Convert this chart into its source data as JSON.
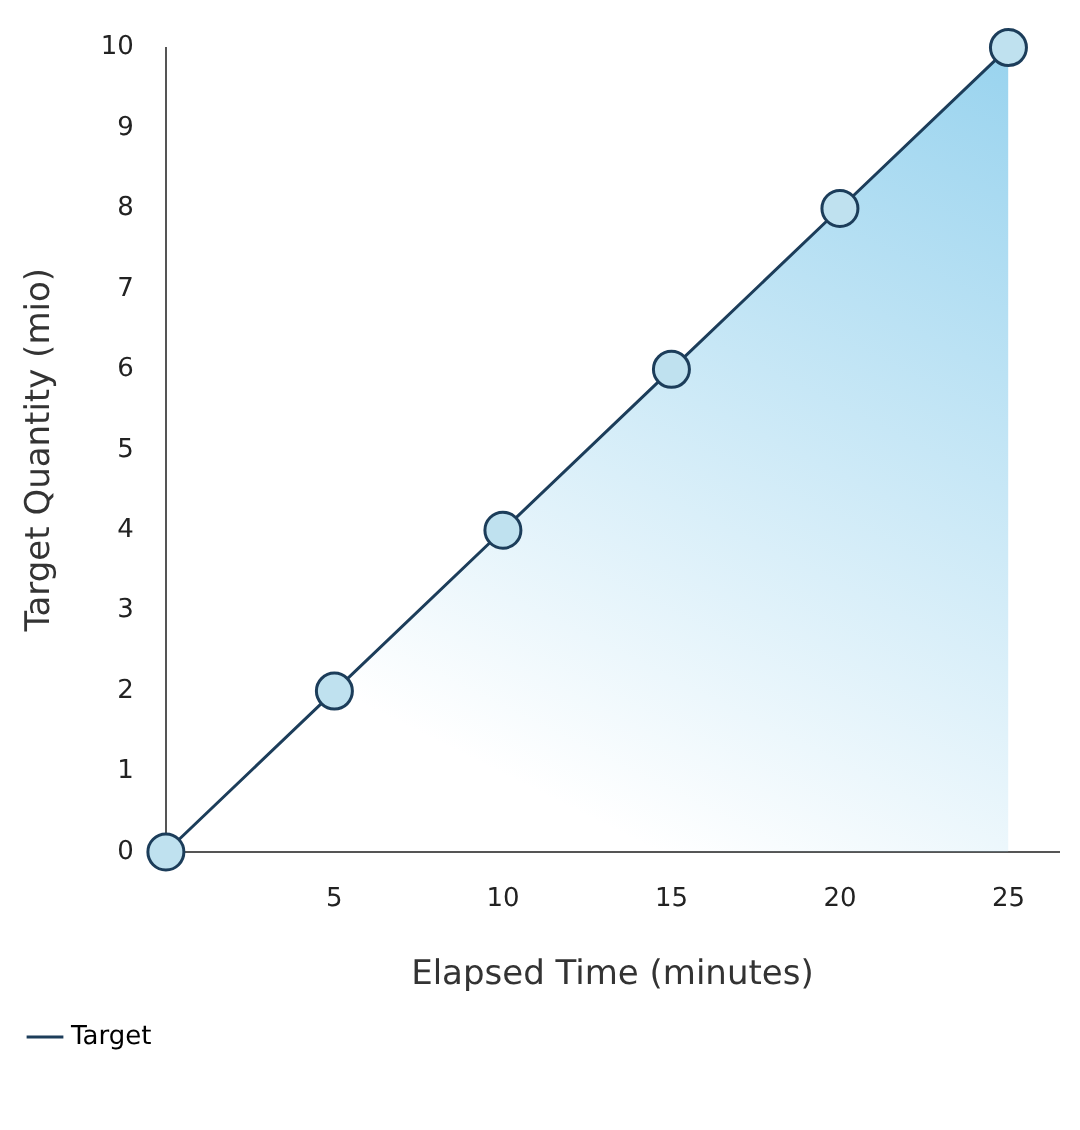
{
  "chart_data": {
    "type": "area",
    "xlabel": "Elapsed Time (minutes)",
    "ylabel": "Target Quantity (mio)",
    "x": [
      0,
      5,
      10,
      15,
      20,
      25
    ],
    "series": [
      {
        "name": "Target",
        "color": "#1c3d5a",
        "values": [
          0,
          2,
          4,
          6,
          8,
          10
        ]
      }
    ],
    "xlim": [
      0,
      26.5
    ],
    "xticks": [
      5,
      10,
      15,
      20,
      25
    ],
    "ylim": [
      0,
      10
    ],
    "yticks": [
      0,
      1,
      2,
      3,
      4,
      5,
      6,
      7,
      8,
      9,
      10
    ],
    "grid": false,
    "legend": "bottom left",
    "marker": "circle",
    "line_style": "solid"
  }
}
